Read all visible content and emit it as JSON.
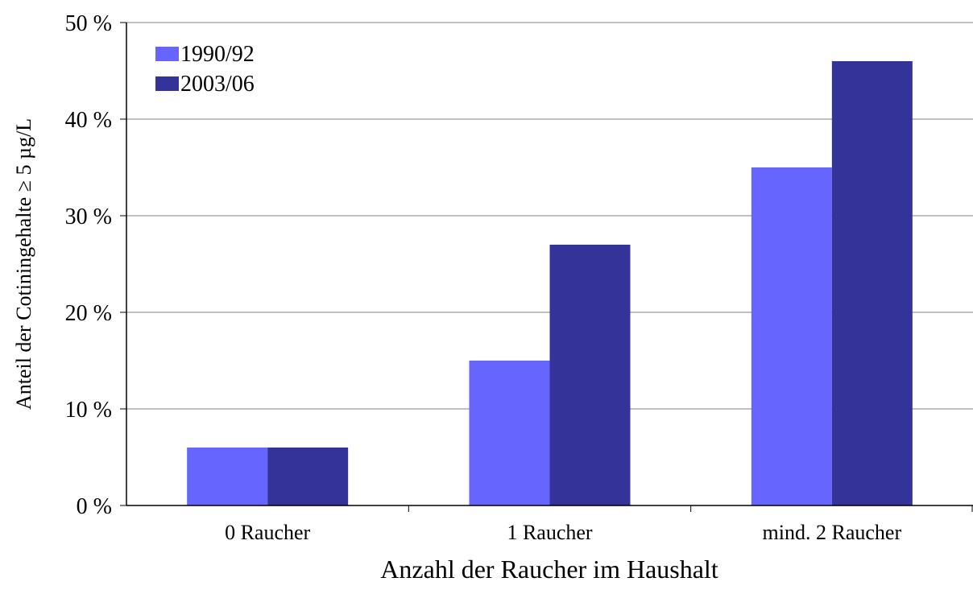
{
  "chart_data": {
    "type": "bar",
    "categories": [
      "0 Raucher",
      "1 Raucher",
      "mind. 2 Raucher"
    ],
    "series": [
      {
        "name": "1990/92",
        "values": [
          6,
          15,
          35
        ],
        "color": "#6666ff"
      },
      {
        "name": "2003/06",
        "values": [
          6,
          27,
          46
        ],
        "color": "#333399"
      }
    ],
    "title": "",
    "xlabel": "Anzahl der Raucher im Haushalt",
    "ylabel": "Anteil der Cotiningehalte ≥ 5 µg/L",
    "ylim": [
      0,
      50
    ],
    "yticks": [
      0,
      10,
      20,
      30,
      40,
      50
    ],
    "ytick_labels": [
      "0 %",
      "10 %",
      "20 %",
      "30 %",
      "40 %",
      "50 %"
    ],
    "grid": true,
    "legend_position": "top-left"
  }
}
